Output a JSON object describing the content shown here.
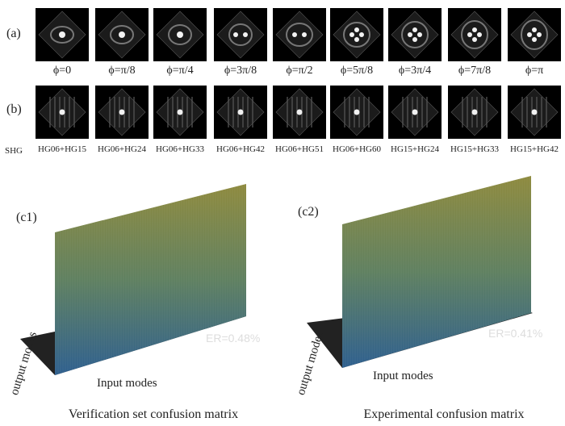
{
  "row_a": {
    "label": "(a)",
    "captions": [
      "ϕ=0",
      "ϕ=π/8",
      "ϕ=π/4",
      "ϕ=3π/8",
      "ϕ=π/2",
      "ϕ=5π/8",
      "ϕ=3π/4",
      "ϕ=7π/8",
      "ϕ=π"
    ]
  },
  "row_b": {
    "label": "(b)",
    "side_label": "SHG",
    "captions": [
      "HG06+HG15",
      "HG06+HG24",
      "HG06+HG33",
      "HG06+HG42",
      "HG06+HG51",
      "HG06+HG60",
      "HG15+HG24",
      "HG15+HG33",
      "HG15+HG42"
    ]
  },
  "panel_c1": {
    "label": "(c1)",
    "er": "ER=0.48%",
    "input_axis": "Input modes",
    "output_axis": "output modes",
    "caption": "Verification set confusion matrix"
  },
  "panel_c2": {
    "label": "(c2)",
    "er": "ER=0.41%",
    "input_axis": "Input modes",
    "output_axis": "output modes",
    "caption": "Experimental confusion matrix"
  },
  "colors": {
    "wall_top": "#8a8a3c",
    "wall_bottom": "#2f5f8a",
    "floor": "#222222"
  }
}
